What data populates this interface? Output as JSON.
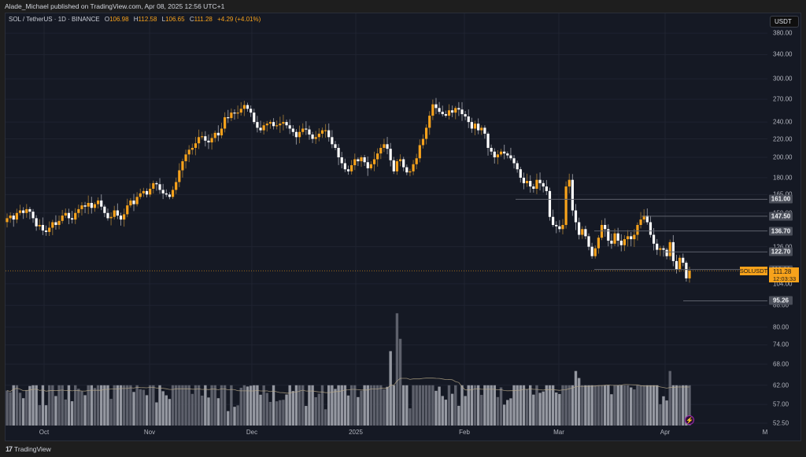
{
  "header": {
    "publisher_text": "Alade_Michael published on TradingView.com, Apr 08, 2025 12:56 UTC+1"
  },
  "legend": {
    "symbol": "SOL / TetherUS · 1D · BINANCE",
    "open_label": "O",
    "open": "106.98",
    "high_label": "H",
    "high": "112.58",
    "low_label": "L",
    "low": "106.65",
    "close_label": "C",
    "close": "111.28",
    "change": "+4.29 (+4.01%)"
  },
  "currency": "USDT",
  "price_badge": {
    "symbol": "SOLUSDT",
    "price": "111.28",
    "countdown": "12:03:33"
  },
  "footer": {
    "logo_text": "TradingView"
  },
  "colors": {
    "up": "#f7a21b",
    "down": "#ffffff",
    "background": "#151924",
    "grid": "#1f2330",
    "volume_light": "#9598a1",
    "volume_dark": "#5d606b",
    "volume_ma": "#b8a98a",
    "levels": "#5d606b"
  },
  "chart_data": {
    "type": "candlestick",
    "title": "SOL / TetherUS · 1D · BINANCE",
    "scale": "log",
    "ylabel": "USDT",
    "y_ticks": [
      380,
      340,
      300,
      270,
      240,
      220,
      200,
      180,
      165,
      150,
      126,
      104,
      88,
      80,
      74,
      68,
      62,
      57,
      52.5
    ],
    "y_tick_labels": [
      "380.00",
      "340.00",
      "300.00",
      "270.00",
      "240.00",
      "220.00",
      "200.00",
      "180.00",
      "165.00",
      "150.00",
      "126.00",
      "104.00",
      "88.00",
      "80.00",
      "74.00",
      "68.00",
      "62.00",
      "57.00",
      "52.50"
    ],
    "x_tick_labels": [
      "Oct",
      "Nov",
      "Dec",
      "2025",
      "Feb",
      "Mar",
      "Apr",
      "M"
    ],
    "horizontal_levels": [
      161.0,
      147.5,
      136.7,
      122.7,
      112.0,
      95.26
    ],
    "horizontal_level_labels": [
      "161.00",
      "147.50",
      "136.70",
      "122.70",
      "112.00",
      "95.26"
    ],
    "last_price": 111.28,
    "ohlc_last": {
      "open": 106.98,
      "high": 112.58,
      "low": 106.65,
      "close": 111.28
    },
    "closes_approx": [
      146,
      148,
      145,
      150,
      152,
      150,
      153,
      151,
      146,
      140,
      141,
      137,
      136,
      139,
      143,
      141,
      144,
      148,
      150,
      146,
      145,
      150,
      153,
      156,
      155,
      158,
      154,
      157,
      160,
      155,
      150,
      146,
      147,
      152,
      148,
      145,
      149,
      156,
      160,
      157,
      163,
      166,
      168,
      165,
      170,
      175,
      174,
      169,
      166,
      165,
      163,
      169,
      176,
      187,
      196,
      203,
      208,
      210,
      215,
      222,
      223,
      218,
      216,
      221,
      227,
      224,
      232,
      246,
      245,
      252,
      251,
      252,
      257,
      262,
      257,
      252,
      240,
      233,
      230,
      236,
      238,
      240,
      235,
      236,
      238,
      240,
      236,
      232,
      228,
      222,
      228,
      232,
      231,
      225,
      220,
      222,
      226,
      230,
      230,
      222,
      214,
      210,
      200,
      194,
      188,
      186,
      192,
      198,
      196,
      200,
      195,
      189,
      193,
      198,
      204,
      210,
      214,
      209,
      197,
      186,
      196,
      198,
      190,
      185,
      186,
      193,
      199,
      213,
      220,
      233,
      248,
      263,
      258,
      253,
      250,
      248,
      255,
      252,
      258,
      256,
      250,
      247,
      240,
      232,
      238,
      230,
      233,
      226,
      210,
      206,
      200,
      203,
      206,
      204,
      202,
      199,
      194,
      188,
      180,
      175,
      177,
      172,
      170,
      178,
      175,
      172,
      168,
      147,
      141,
      140,
      138,
      141,
      172,
      178,
      152,
      143,
      134,
      138,
      133,
      126,
      120,
      125,
      132,
      141,
      138,
      130,
      128,
      135,
      130,
      127,
      131,
      133,
      131,
      134,
      141,
      145,
      148,
      143,
      134,
      128,
      124,
      125,
      124,
      120,
      129,
      117,
      112,
      119,
      116,
      107,
      111
    ],
    "volume_ma_approx": "line overlay on volume bars",
    "legend_position": "top-left",
    "grid": true
  }
}
